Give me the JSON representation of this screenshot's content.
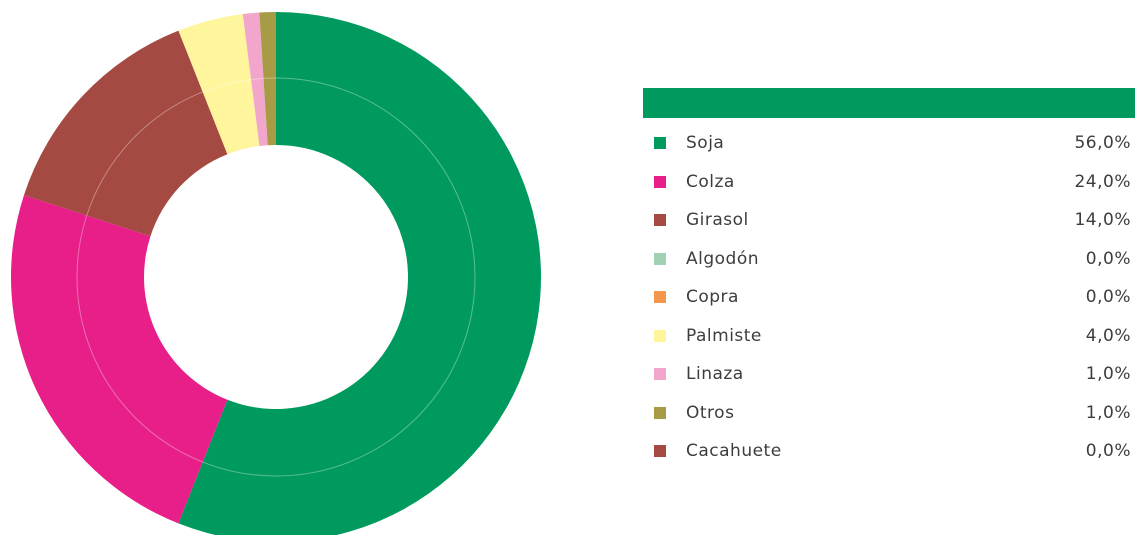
{
  "chart_data": {
    "type": "pie",
    "variant": "donut",
    "title": "",
    "categories": [
      "Soja",
      "Colza",
      "Girasol",
      "Algodón",
      "Copra",
      "Palmiste",
      "Linaza",
      "Otros",
      "Cacahuete"
    ],
    "values": [
      56.0,
      24.0,
      14.0,
      0.0,
      0.0,
      4.0,
      1.0,
      1.0,
      0.0
    ],
    "value_labels": [
      "56,0%",
      "24,0%",
      "14,0%",
      "0,0%",
      "0,0%",
      "4,0%",
      "1,0%",
      "1,0%",
      "0,0%"
    ],
    "colors": [
      "#009a5e",
      "#e81f89",
      "#a54a42",
      "#9fd1b4",
      "#f5974a",
      "#fff59d",
      "#f2a6cb",
      "#a79c45",
      "#a54a42"
    ],
    "legend_position": "right",
    "legend_header_color": "#009a5e"
  }
}
